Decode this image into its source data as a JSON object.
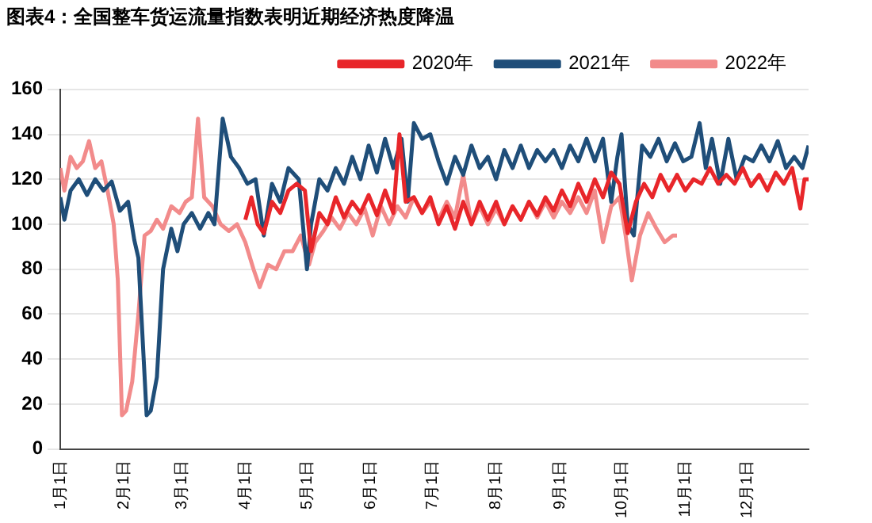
{
  "chart_data": {
    "type": "line",
    "title": "图表4：全国整车货运流量指数表明近期经济热度降温",
    "xlim": [
      "--01-01",
      "--12-31"
    ],
    "xticks": [
      {
        "value": "--01-01",
        "label": "1月1日"
      },
      {
        "value": "--02-01",
        "label": "2月1日"
      },
      {
        "value": "--03-01",
        "label": "3月1日"
      },
      {
        "value": "--04-01",
        "label": "4月1日"
      },
      {
        "value": "--05-01",
        "label": "5月1日"
      },
      {
        "value": "--06-01",
        "label": "6月1日"
      },
      {
        "value": "--07-01",
        "label": "7月1日"
      },
      {
        "value": "--08-01",
        "label": "8月1日"
      },
      {
        "value": "--09-01",
        "label": "9月1日"
      },
      {
        "value": "--10-01",
        "label": "10月1日"
      },
      {
        "value": "--11-01",
        "label": "11月1日"
      },
      {
        "value": "--12-01",
        "label": "12月1日"
      }
    ],
    "ylim": [
      0,
      160
    ],
    "yticks": [
      0,
      20,
      40,
      60,
      80,
      100,
      120,
      140,
      160
    ],
    "grid": "y",
    "legend": "top right",
    "marker": "none",
    "line_style": "solid",
    "series": [
      {
        "name": "2020年",
        "color": "#e8262a",
        "x": [
          "--04-01",
          "--04-04",
          "--04-07",
          "--04-10",
          "--04-14",
          "--04-18",
          "--04-22",
          "--04-26",
          "--04-30",
          "--05-03",
          "--05-07",
          "--05-11",
          "--05-15",
          "--05-19",
          "--05-23",
          "--05-27",
          "--05-31",
          "--06-04",
          "--06-08",
          "--06-12",
          "--06-15",
          "--06-18",
          "--06-22",
          "--06-26",
          "--06-30",
          "--07-04",
          "--07-08",
          "--07-12",
          "--07-16",
          "--07-20",
          "--07-24",
          "--07-28",
          "--08-01",
          "--08-05",
          "--08-09",
          "--08-13",
          "--08-17",
          "--08-21",
          "--08-25",
          "--08-29",
          "--09-02",
          "--09-06",
          "--09-10",
          "--09-14",
          "--09-18",
          "--09-22",
          "--09-26",
          "--09-30",
          "--10-04",
          "--10-08",
          "--10-12",
          "--10-16",
          "--10-20",
          "--10-24",
          "--10-28",
          "--11-01",
          "--11-05",
          "--11-09",
          "--11-13",
          "--11-17",
          "--11-21",
          "--11-25",
          "--11-29",
          "--12-03",
          "--12-07",
          "--12-11",
          "--12-15",
          "--12-19",
          "--12-23",
          "--12-27",
          "--12-29",
          "--12-31"
        ],
        "values": [
          102,
          112,
          100,
          96,
          110,
          105,
          115,
          118,
          115,
          88,
          105,
          100,
          112,
          103,
          110,
          105,
          113,
          104,
          115,
          105,
          140,
          110,
          112,
          105,
          112,
          100,
          108,
          98,
          110,
          100,
          110,
          102,
          110,
          100,
          108,
          102,
          110,
          104,
          112,
          106,
          115,
          108,
          118,
          110,
          120,
          112,
          123,
          118,
          96,
          110,
          118,
          112,
          122,
          115,
          122,
          115,
          120,
          118,
          125,
          118,
          122,
          118,
          125,
          117,
          122,
          115,
          123,
          118,
          125,
          107,
          120,
          120
        ]
      },
      {
        "name": "2021年",
        "color": "#1f4e79",
        "x": [
          "--01-01",
          "--01-03",
          "--01-06",
          "--01-10",
          "--01-14",
          "--01-18",
          "--01-22",
          "--01-26",
          "--01-30",
          "--02-03",
          "--02-06",
          "--02-08",
          "--02-10",
          "--02-12",
          "--02-14",
          "--02-17",
          "--02-20",
          "--02-24",
          "--02-27",
          "--03-02",
          "--03-06",
          "--03-10",
          "--03-14",
          "--03-17",
          "--03-21",
          "--03-25",
          "--03-29",
          "--04-02",
          "--04-06",
          "--04-10",
          "--04-14",
          "--04-18",
          "--04-22",
          "--04-27",
          "--05-01",
          "--05-03",
          "--05-07",
          "--05-11",
          "--05-15",
          "--05-19",
          "--05-23",
          "--05-27",
          "--05-31",
          "--06-04",
          "--06-08",
          "--06-12",
          "--06-16",
          "--06-19",
          "--06-22",
          "--06-26",
          "--06-30",
          "--07-04",
          "--07-08",
          "--07-12",
          "--07-16",
          "--07-20",
          "--07-24",
          "--07-28",
          "--08-01",
          "--08-05",
          "--08-09",
          "--08-13",
          "--08-17",
          "--08-21",
          "--08-25",
          "--08-29",
          "--09-02",
          "--09-06",
          "--09-10",
          "--09-14",
          "--09-18",
          "--09-22",
          "--09-26",
          "--09-29",
          "--10-01",
          "--10-04",
          "--10-07",
          "--10-11",
          "--10-15",
          "--10-19",
          "--10-23",
          "--10-27",
          "--10-31",
          "--11-04",
          "--11-08",
          "--11-11",
          "--11-14",
          "--11-18",
          "--11-22",
          "--11-26",
          "--11-30",
          "--12-04",
          "--12-08",
          "--12-12",
          "--12-16",
          "--12-20",
          "--12-24",
          "--12-28",
          "--12-31"
        ],
        "values": [
          112,
          102,
          115,
          120,
          113,
          120,
          115,
          119,
          106,
          110,
          93,
          85,
          50,
          15,
          17,
          32,
          80,
          98,
          88,
          100,
          105,
          98,
          105,
          100,
          147,
          130,
          125,
          118,
          120,
          95,
          118,
          110,
          125,
          120,
          80,
          100,
          120,
          115,
          125,
          118,
          130,
          120,
          135,
          123,
          138,
          125,
          138,
          110,
          145,
          138,
          140,
          128,
          118,
          130,
          122,
          135,
          125,
          130,
          120,
          133,
          125,
          135,
          125,
          133,
          128,
          133,
          125,
          135,
          128,
          138,
          128,
          138,
          110,
          130,
          140,
          100,
          95,
          135,
          130,
          138,
          128,
          136,
          128,
          130,
          145,
          125,
          138,
          118,
          138,
          120,
          130,
          128,
          135,
          128,
          137,
          125,
          130,
          125,
          135
        ]
      },
      {
        "name": "2022年",
        "color": "#f28b8b",
        "x": [
          "--01-01",
          "--01-03",
          "--01-06",
          "--01-09",
          "--01-12",
          "--01-15",
          "--01-18",
          "--01-21",
          "--01-24",
          "--01-27",
          "--01-29",
          "--01-31",
          "--02-02",
          "--02-05",
          "--02-08",
          "--02-11",
          "--02-14",
          "--02-17",
          "--02-20",
          "--02-24",
          "--02-28",
          "--03-03",
          "--03-06",
          "--03-09",
          "--03-12",
          "--03-16",
          "--03-20",
          "--03-24",
          "--03-28",
          "--04-01",
          "--04-05",
          "--04-08",
          "--04-12",
          "--04-16",
          "--04-20",
          "--04-24",
          "--04-28",
          "--05-02",
          "--05-05",
          "--05-09",
          "--05-13",
          "--05-17",
          "--05-21",
          "--05-25",
          "--05-29",
          "--06-02",
          "--06-06",
          "--06-10",
          "--06-14",
          "--06-18",
          "--06-22",
          "--06-26",
          "--06-30",
          "--07-04",
          "--07-08",
          "--07-12",
          "--07-16",
          "--07-20",
          "--07-24",
          "--07-28",
          "--08-01",
          "--08-05",
          "--08-09",
          "--08-13",
          "--08-17",
          "--08-21",
          "--08-25",
          "--08-29",
          "--09-02",
          "--09-06",
          "--09-10",
          "--09-14",
          "--09-18",
          "--09-22",
          "--09-26",
          "--09-30",
          "--10-03",
          "--10-06",
          "--10-10",
          "--10-14",
          "--10-18",
          "--10-22",
          "--10-26",
          "--10-28"
        ],
        "values": [
          125,
          115,
          130,
          125,
          128,
          137,
          125,
          128,
          115,
          100,
          75,
          15,
          17,
          30,
          60,
          95,
          97,
          102,
          98,
          108,
          105,
          110,
          112,
          147,
          112,
          108,
          100,
          97,
          100,
          92,
          80,
          72,
          82,
          80,
          88,
          88,
          95,
          82,
          92,
          97,
          103,
          98,
          105,
          100,
          107,
          95,
          108,
          100,
          108,
          103,
          112,
          105,
          110,
          102,
          110,
          103,
          122,
          100,
          108,
          100,
          107,
          100,
          108,
          102,
          110,
          103,
          110,
          103,
          110,
          105,
          112,
          105,
          115,
          92,
          108,
          112,
          95,
          75,
          95,
          105,
          98,
          92,
          95,
          95
        ]
      }
    ]
  }
}
